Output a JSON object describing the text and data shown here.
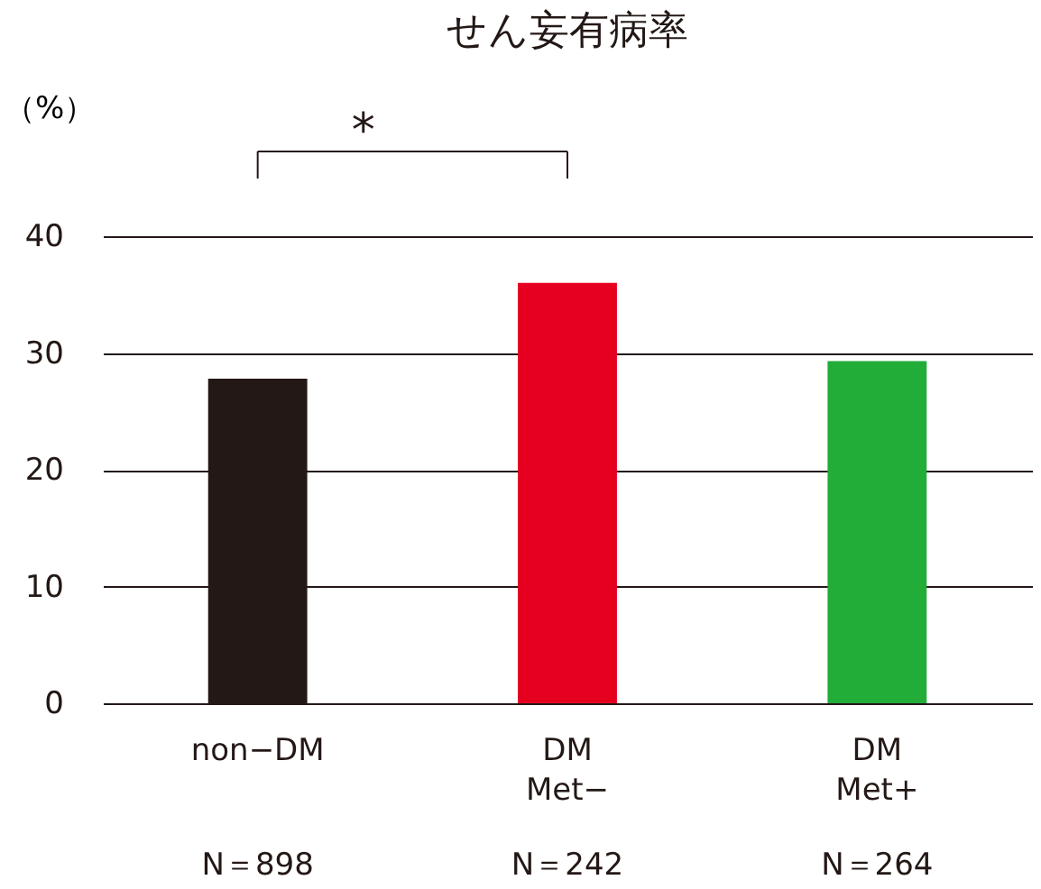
{
  "chart_data": {
    "type": "bar",
    "title": "せん妄有病率",
    "ylabel": "（%）",
    "categories": [
      "non−DM",
      "DM\nMet−",
      "DM\nMet+"
    ],
    "values": [
      27.8,
      36.0,
      29.3
    ],
    "colors": [
      "#231815",
      "#e60020",
      "#22ac38"
    ],
    "ylim": [
      0,
      40
    ],
    "yticks": [
      0,
      10,
      20,
      30,
      40
    ],
    "grid": "y",
    "annotations": [
      "*",
      "N＝898",
      "N＝242",
      "N＝264"
    ]
  }
}
